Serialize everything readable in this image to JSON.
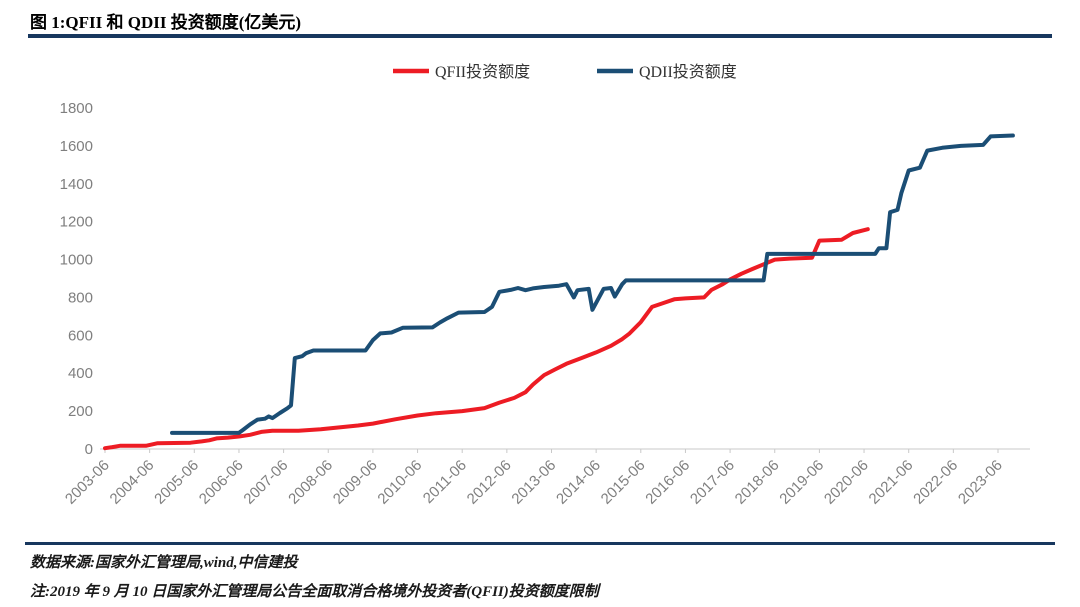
{
  "footer": {
    "source": "数据来源:国家外汇管理局,wind,中信建投",
    "note": "注:2019 年 9 月 10 日国家外汇管理局公告全面取消合格境外投资者(QFII)投资额度限制"
  },
  "colors": {
    "qfii_red": "#ed1c24",
    "qdii_blue": "#1b4e75",
    "rule_navy": "#17375e",
    "axis_text_gray": "#7f7f7f",
    "axis_line_gray": "#c9c9c9"
  },
  "chart_data": {
    "type": "line",
    "title": "图 1:QFII 和 QDII 投资额度(亿美元)",
    "xlabel": "",
    "ylabel": "",
    "ylim": [
      0,
      1800
    ],
    "yticks": [
      0,
      200,
      400,
      600,
      800,
      1000,
      1200,
      1400,
      1600,
      1800
    ],
    "categories": [
      "2003-06",
      "2004-06",
      "2005-06",
      "2006-06",
      "2007-06",
      "2008-06",
      "2009-06",
      "2010-06",
      "2011-06",
      "2012-06",
      "2013-06",
      "2014-06",
      "2015-06",
      "2016-06",
      "2017-06",
      "2018-06",
      "2019-06",
      "2020-06",
      "2021-06",
      "2022-06",
      "2023-06"
    ],
    "x_unit": "year-month",
    "grid": false,
    "legend_position": "top-center",
    "series": [
      {
        "name": "QFII投资额度",
        "color": "#ed1c24",
        "points": [
          [
            "2003-06",
            4
          ],
          [
            "2003-08",
            10
          ],
          [
            "2003-10",
            17
          ],
          [
            "2004-05",
            17
          ],
          [
            "2004-08",
            30
          ],
          [
            "2005-05",
            33
          ],
          [
            "2005-08",
            40
          ],
          [
            "2005-10",
            46
          ],
          [
            "2005-12",
            56
          ],
          [
            "2006-03",
            60
          ],
          [
            "2006-06",
            66
          ],
          [
            "2006-09",
            75
          ],
          [
            "2006-12",
            90
          ],
          [
            "2007-03",
            96
          ],
          [
            "2007-10",
            96
          ],
          [
            "2008-04",
            104
          ],
          [
            "2008-10",
            116
          ],
          [
            "2009-02",
            124
          ],
          [
            "2009-06",
            134
          ],
          [
            "2009-12",
            157
          ],
          [
            "2010-06",
            177
          ],
          [
            "2010-11",
            189
          ],
          [
            "2011-06",
            200
          ],
          [
            "2011-12",
            216
          ],
          [
            "2012-04",
            245
          ],
          [
            "2012-08",
            270
          ],
          [
            "2012-11",
            300
          ],
          [
            "2013-01",
            340
          ],
          [
            "2013-04",
            390
          ],
          [
            "2013-07",
            420
          ],
          [
            "2013-10",
            450
          ],
          [
            "2014-02",
            480
          ],
          [
            "2014-06",
            510
          ],
          [
            "2014-10",
            545
          ],
          [
            "2015-01",
            580
          ],
          [
            "2015-03",
            610
          ],
          [
            "2015-06",
            670
          ],
          [
            "2015-09",
            750
          ],
          [
            "2015-12",
            770
          ],
          [
            "2016-03",
            790
          ],
          [
            "2016-06",
            795
          ],
          [
            "2016-11",
            800
          ],
          [
            "2017-01",
            840
          ],
          [
            "2017-04",
            870
          ],
          [
            "2017-06",
            895
          ],
          [
            "2017-09",
            925
          ],
          [
            "2017-12",
            950
          ],
          [
            "2018-03",
            975
          ],
          [
            "2018-06",
            1000
          ],
          [
            "2018-10",
            1005
          ],
          [
            "2019-04",
            1010
          ],
          [
            "2019-06",
            1100
          ],
          [
            "2019-12",
            1105
          ],
          [
            "2020-03",
            1140
          ],
          [
            "2020-07",
            1160
          ]
        ]
      },
      {
        "name": "QDII投资额度",
        "color": "#1b4e75",
        "points": [
          [
            "2004-12",
            85
          ],
          [
            "2006-06",
            85
          ],
          [
            "2006-07",
            100
          ],
          [
            "2006-09",
            130
          ],
          [
            "2006-11",
            155
          ],
          [
            "2007-01",
            160
          ],
          [
            "2007-02",
            172
          ],
          [
            "2007-03",
            163
          ],
          [
            "2007-05",
            190
          ],
          [
            "2007-07",
            215
          ],
          [
            "2007-08",
            230
          ],
          [
            "2007-09",
            480
          ],
          [
            "2007-11",
            490
          ],
          [
            "2007-12",
            505
          ],
          [
            "2008-02",
            520
          ],
          [
            "2009-04",
            520
          ],
          [
            "2009-06",
            575
          ],
          [
            "2009-08",
            610
          ],
          [
            "2009-11",
            615
          ],
          [
            "2010-02",
            640
          ],
          [
            "2010-10",
            642
          ],
          [
            "2010-12",
            668
          ],
          [
            "2011-02",
            690
          ],
          [
            "2011-05",
            720
          ],
          [
            "2011-12",
            723
          ],
          [
            "2012-02",
            750
          ],
          [
            "2012-04",
            830
          ],
          [
            "2012-07",
            840
          ],
          [
            "2012-09",
            850
          ],
          [
            "2012-11",
            838
          ],
          [
            "2013-01",
            848
          ],
          [
            "2013-04",
            855
          ],
          [
            "2013-08",
            862
          ],
          [
            "2013-10",
            870
          ],
          [
            "2013-12",
            800
          ],
          [
            "2014-01",
            838
          ],
          [
            "2014-04",
            845
          ],
          [
            "2014-05",
            735
          ],
          [
            "2014-08",
            845
          ],
          [
            "2014-10",
            850
          ],
          [
            "2014-11",
            805
          ],
          [
            "2015-01",
            870
          ],
          [
            "2015-02",
            890
          ],
          [
            "2018-03",
            890
          ],
          [
            "2018-04",
            1030
          ],
          [
            "2020-09",
            1030
          ],
          [
            "2020-10",
            1060
          ],
          [
            "2020-12",
            1060
          ],
          [
            "2021-01",
            1250
          ],
          [
            "2021-03",
            1262
          ],
          [
            "2021-04",
            1350
          ],
          [
            "2021-06",
            1470
          ],
          [
            "2021-09",
            1485
          ],
          [
            "2021-11",
            1575
          ],
          [
            "2022-03",
            1590
          ],
          [
            "2022-08",
            1600
          ],
          [
            "2023-02",
            1605
          ],
          [
            "2023-04",
            1650
          ],
          [
            "2023-10",
            1655
          ]
        ]
      }
    ]
  }
}
